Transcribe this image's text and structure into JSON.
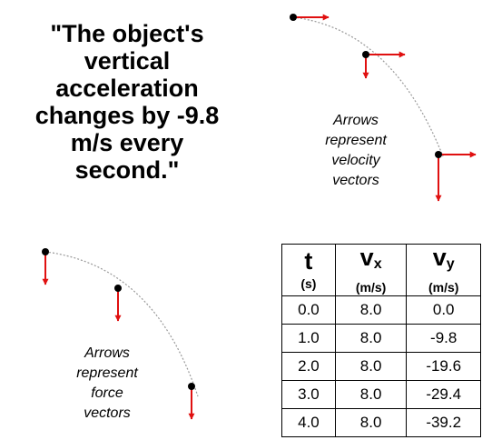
{
  "quote": {
    "lines": [
      "\"The object's",
      "vertical",
      "acceleration",
      "changes by -9.8",
      "m/s every",
      "second.\""
    ]
  },
  "velocity_diagram": {
    "caption_lines": [
      "Arrows",
      "represent",
      "velocity",
      "vectors"
    ],
    "vector_color": "#e01010",
    "point_color": "#000000",
    "path_color": "#999999"
  },
  "force_diagram": {
    "caption_lines": [
      "Arrows",
      "represent",
      "force",
      "vectors"
    ],
    "vector_color": "#e01010"
  },
  "table": {
    "headers": [
      {
        "symbol": "t",
        "sub": "",
        "unit": "(s)"
      },
      {
        "symbol": "v",
        "sub": "x",
        "unit": "(m/s)"
      },
      {
        "symbol": "v",
        "sub": "y",
        "unit": "(m/s)"
      }
    ],
    "rows": [
      [
        "0.0",
        "8.0",
        "0.0"
      ],
      [
        "1.0",
        "8.0",
        "-9.8"
      ],
      [
        "2.0",
        "8.0",
        "-19.6"
      ],
      [
        "3.0",
        "8.0",
        "-29.4"
      ],
      [
        "4.0",
        "8.0",
        "-39.2"
      ]
    ]
  }
}
